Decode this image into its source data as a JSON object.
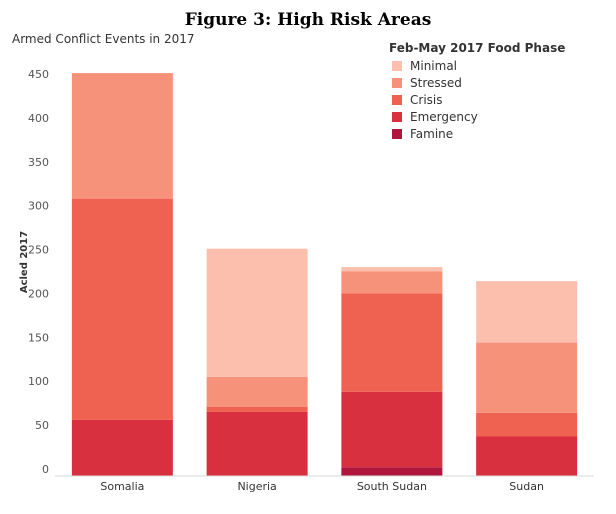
{
  "figure_title": "Figure 3:  High Risk Areas",
  "chart_data": {
    "type": "bar",
    "stacked": true,
    "title": "Armed Conflict Events in 2017",
    "ylabel": "Acled 2017",
    "xlabel": "",
    "ylim": [
      0,
      460
    ],
    "yticks": [
      0,
      50,
      100,
      150,
      200,
      250,
      300,
      350,
      400,
      450
    ],
    "categories": [
      "Somalia",
      "Nigeria",
      "South Sudan",
      "Sudan"
    ],
    "legend_title": "Feb-May 2017 Food Phase",
    "legend_position": "top-right",
    "grid": false,
    "series": [
      {
        "name": "Famine",
        "color": "#b0153e",
        "values": [
          0,
          0,
          10,
          0
        ]
      },
      {
        "name": "Emergency",
        "color": "#d9303f",
        "values": [
          64,
          73,
          86,
          45
        ]
      },
      {
        "name": "Crisis",
        "color": "#ef6150",
        "values": [
          252,
          6,
          112,
          27
        ]
      },
      {
        "name": "Stressed",
        "color": "#f7927a",
        "values": [
          143,
          34,
          25,
          80
        ]
      },
      {
        "name": "Minimal",
        "color": "#fcbfae",
        "values": [
          0,
          146,
          5,
          70
        ]
      }
    ]
  }
}
